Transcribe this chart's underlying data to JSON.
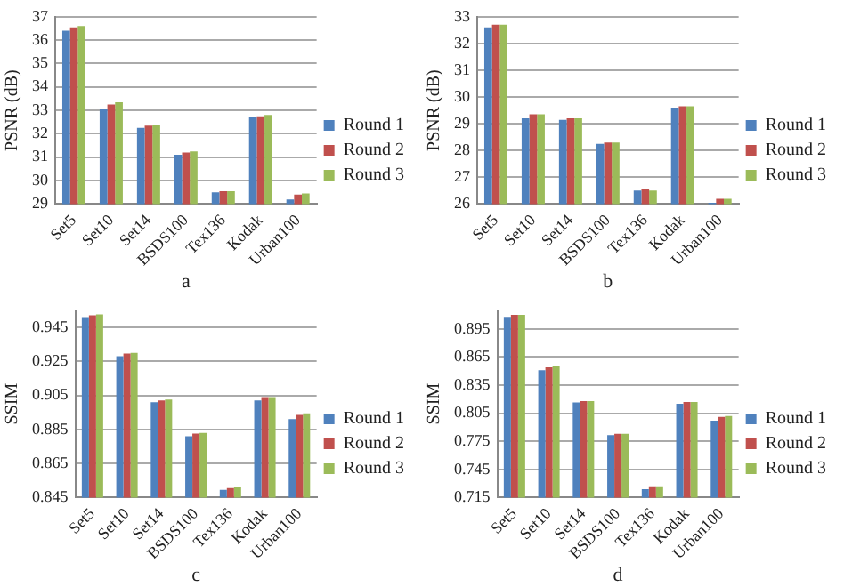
{
  "chart_data": [
    {
      "type": "bar",
      "xlabel": "a",
      "ylabel": "PSNR (dB)",
      "categories": [
        "Set5",
        "Set10",
        "Set14",
        "BSDS100",
        "Tex136",
        "Kodak",
        "Urban100"
      ],
      "ylim": [
        29,
        37
      ],
      "yticks": [
        29,
        30,
        31,
        32,
        33,
        34,
        35,
        36,
        37
      ],
      "grid": "y",
      "legend": "right",
      "series": [
        {
          "name": "Round 1",
          "color": "#4f81bd",
          "values": [
            36.4,
            33.05,
            32.25,
            31.1,
            29.5,
            32.7,
            29.2
          ]
        },
        {
          "name": "Round 2",
          "color": "#c0504d",
          "values": [
            36.55,
            33.25,
            32.35,
            31.2,
            29.55,
            32.75,
            29.4
          ]
        },
        {
          "name": "Round 3",
          "color": "#9bbb59",
          "values": [
            36.6,
            33.35,
            32.4,
            31.25,
            29.55,
            32.8,
            29.45
          ]
        }
      ]
    },
    {
      "type": "bar",
      "xlabel": "b",
      "ylabel": "PSNR (dB)",
      "categories": [
        "Set5",
        "Set10",
        "Set14",
        "BSDS100",
        "Tex136",
        "Kodak",
        "Urban100"
      ],
      "ylim": [
        26,
        33
      ],
      "yticks": [
        26,
        27,
        28,
        29,
        30,
        31,
        32,
        33
      ],
      "grid": "y",
      "legend": "right",
      "series": [
        {
          "name": "Round 1",
          "color": "#4f81bd",
          "values": [
            32.6,
            29.2,
            29.15,
            28.25,
            26.5,
            29.6,
            26.05
          ]
        },
        {
          "name": "Round 2",
          "color": "#c0504d",
          "values": [
            32.7,
            29.35,
            29.2,
            28.3,
            26.55,
            29.65,
            26.2
          ]
        },
        {
          "name": "Round 3",
          "color": "#9bbb59",
          "values": [
            32.7,
            29.35,
            29.2,
            28.3,
            26.5,
            29.65,
            26.2
          ]
        }
      ]
    },
    {
      "type": "bar",
      "xlabel": "c",
      "ylabel": "SSIM",
      "categories": [
        "Set5",
        "Set10",
        "Set14",
        "BSDS100",
        "Tex136",
        "Kodak",
        "Urban100"
      ],
      "ylim": [
        0.845,
        0.955
      ],
      "yticks": [
        0.845,
        0.865,
        0.885,
        0.905,
        0.925,
        0.945
      ],
      "grid": "y",
      "legend": "right",
      "series": [
        {
          "name": "Round 1",
          "color": "#4f81bd",
          "values": [
            0.951,
            0.928,
            0.901,
            0.881,
            0.8495,
            0.902,
            0.891
          ]
        },
        {
          "name": "Round 2",
          "color": "#c0504d",
          "values": [
            0.952,
            0.9295,
            0.902,
            0.8825,
            0.8505,
            0.904,
            0.8935
          ]
        },
        {
          "name": "Round 3",
          "color": "#9bbb59",
          "values": [
            0.9525,
            0.93,
            0.9025,
            0.883,
            0.851,
            0.904,
            0.8945
          ]
        }
      ]
    },
    {
      "type": "bar",
      "xlabel": "d",
      "ylabel": "SSIM",
      "categories": [
        "Set5",
        "Set10",
        "Set14",
        "BSDS100",
        "Tex136",
        "Kodak",
        "Urban100"
      ],
      "ylim": [
        0.715,
        0.915
      ],
      "yticks": [
        0.715,
        0.745,
        0.775,
        0.805,
        0.835,
        0.865,
        0.895
      ],
      "grid": "y",
      "legend": "right",
      "series": [
        {
          "name": "Round 1",
          "color": "#4f81bd",
          "values": [
            0.908,
            0.851,
            0.8165,
            0.7815,
            0.724,
            0.815,
            0.797
          ]
        },
        {
          "name": "Round 2",
          "color": "#c0504d",
          "values": [
            0.91,
            0.854,
            0.818,
            0.783,
            0.726,
            0.817,
            0.801
          ]
        },
        {
          "name": "Round 3",
          "color": "#9bbb59",
          "values": [
            0.91,
            0.855,
            0.818,
            0.783,
            0.726,
            0.817,
            0.802
          ]
        }
      ]
    }
  ]
}
